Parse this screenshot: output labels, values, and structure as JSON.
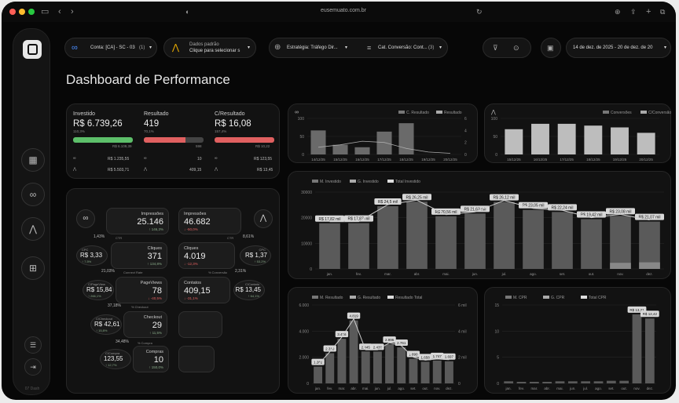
{
  "browser": {
    "url": "eusemuato.com.br"
  },
  "sidebar": {
    "version": "07 Dash"
  },
  "filters": {
    "account": {
      "label": "Conta: [CA] - SC - 03",
      "count": "(1)"
    },
    "ads": {
      "line1": "Dados padrão",
      "line2": "Clique para selecionar s"
    },
    "strategy": {
      "label": "Estratégia: Tráfego Dir...",
      "count": ""
    },
    "conversion": {
      "label": "Cat. Conversão: Cont...",
      "count": "(3)"
    },
    "date": "14 de dez. de 2025 - 20 de dez. de 20"
  },
  "page_title": "Dashboard de Performance",
  "kpi": {
    "investido": {
      "label": "Investido",
      "value": "R$ 6.739,26",
      "pct": "110,3%",
      "meta": "R$ 6.109,39",
      "meta_val": "R$ 1.235,55",
      "google_val": "R$ 5.503,71"
    },
    "resultado": {
      "label": "Resultado",
      "value": "419",
      "pct": "70,1%",
      "meta": "598",
      "meta_val": "10",
      "google_val": "409,15"
    },
    "cresultado": {
      "label": "C/Resultado",
      "value": "R$ 16,08",
      "pct": "157,4%",
      "meta": "R$ 10,22",
      "meta_val": "R$ 123,55",
      "google_val": "R$ 13,45"
    }
  },
  "funnel": {
    "left": [
      {
        "label": "Impressões",
        "value": "25.146",
        "delta": "↑ 146,3%"
      },
      {
        "label": "Cliques",
        "value": "371",
        "delta": "↑ 134,8%"
      },
      {
        "label": "PageViews",
        "value": "78",
        "delta": "↓ -40,5%"
      },
      {
        "label": "Checkout",
        "value": "29",
        "delta": "↑ 11,5%"
      },
      {
        "label": "Compras",
        "value": "10",
        "delta": "↑ 150,0%"
      }
    ],
    "right": [
      {
        "label": "Impressões",
        "value": "46.682",
        "delta": "↓ -50,0%"
      },
      {
        "label": "Cliques",
        "value": "4.019",
        "delta": "↓ -12,3%"
      },
      {
        "label": "Contatos",
        "value": "409,15",
        "delta": "↓ -31,1%"
      }
    ],
    "rates_left": [
      {
        "label": "CTR",
        "value": "1,43%"
      },
      {
        "label": "Connect Rate",
        "value": "21,03%"
      },
      {
        "label": "% Checkout",
        "value": "37,18%"
      },
      {
        "label": "% Compra",
        "value": "34,48%"
      }
    ],
    "rates_right": [
      {
        "label": "CTR",
        "value": "8,61%"
      },
      {
        "label": "% Conversão",
        "value": "2,31%"
      }
    ],
    "costs_left": [
      {
        "label": "CPC",
        "value": "R$ 3,33",
        "delta": "↑ 7,5%"
      },
      {
        "label": "C/PageView",
        "value": "R$ 15,84",
        "delta": "↑ 266,1%"
      },
      {
        "label": "C/Checkout",
        "value": "R$ 42,61",
        "delta": "↑ 15,8%"
      },
      {
        "label": "C/Compra",
        "value": "123,55",
        "delta": "↑ 12,7%"
      }
    ],
    "costs_right": [
      {
        "label": "CPC",
        "value": "R$ 1,37",
        "delta": "↑ 53,2%"
      },
      {
        "label": "C/Contato",
        "value": "R$ 13,45",
        "delta": "↑ 64,1%"
      }
    ]
  },
  "chart_data": [
    {
      "type": "bar",
      "id": "daily-results",
      "legend": [
        "C. Resultado",
        "Resultado"
      ],
      "categories": [
        "14/12/25",
        "15/12/25",
        "16/12/25",
        "17/12/25",
        "18/12/25",
        "19/12/25",
        "20/12/25"
      ],
      "series": [
        {
          "name": "C. Resultado",
          "values": [
            100,
            40,
            30,
            95,
            130,
            0,
            0
          ]
        },
        {
          "name": "Resultado",
          "values": [
            1.2,
            1.6,
            2.2,
            2.0,
            1.0,
            0.4,
            0.2
          ]
        }
      ],
      "yticks_left": [
        "0",
        "50",
        "100"
      ],
      "yticks_right": [
        "0",
        "2",
        "4",
        "6"
      ]
    },
    {
      "type": "bar",
      "id": "daily-conversions",
      "legend": [
        "Conversões",
        "C/Conversão"
      ],
      "categories": [
        "15/12/25",
        "16/12/25",
        "17/12/25",
        "18/12/25",
        "19/12/25",
        "20/12/25"
      ],
      "series": [
        {
          "name": "Conversões",
          "values": [
            70,
            85,
            85,
            80,
            75,
            60
          ]
        }
      ],
      "yticks": [
        "0",
        "50",
        "100"
      ]
    },
    {
      "type": "bar",
      "id": "monthly-investment",
      "legend": [
        "M. Investido",
        "G. Investido",
        "Total Investido"
      ],
      "categories": [
        "jan.",
        "fev.",
        "mar.",
        "abr.",
        "mai.",
        "jun.",
        "jul.",
        "ago.",
        "set.",
        "out.",
        "nov.",
        "dez."
      ],
      "series": [
        {
          "name": "G. Investido",
          "values": [
            17820,
            17870,
            24500,
            26250,
            20560,
            21630,
            26120,
            23050,
            22240,
            19420,
            20700,
            18500
          ]
        },
        {
          "name": "M. Investido",
          "values": [
            0,
            0,
            0,
            0,
            0,
            0,
            0,
            0,
            0,
            0,
            2380,
            2570
          ]
        }
      ],
      "data_labels": [
        "R$ 17,82 mil",
        "R$ 17,87 mil",
        "R$ 24,5 mil",
        "R$ 26,25 mil",
        "R$ 20,56 mil",
        "R$ 21,63 mil",
        "R$ 26,12 mil",
        "R$ 23,05 mil",
        "R$ 22,24 mil",
        "R$ 19,42 mil",
        "R$ 23,08 mil",
        "R$ 21,07 mil"
      ],
      "yticks": [
        "0",
        "10000",
        "20000",
        "30000"
      ],
      "ylim": [
        0,
        30000
      ]
    },
    {
      "type": "bar",
      "id": "monthly-results",
      "legend": [
        "M. Resultado",
        "G. Resultado",
        "Resultado Total"
      ],
      "categories": [
        "jan.",
        "fev.",
        "mar.",
        "abr.",
        "mai.",
        "jun.",
        "jul.",
        "ago.",
        "set.",
        "out.",
        "nov.",
        "dez."
      ],
      "series": [
        {
          "name": "G. Resultado",
          "values": [
            1282,
            2310,
            3416,
            4819,
            2445,
            2439,
            2996,
            2761,
            1890,
            1658,
            1747,
            1697
          ]
        }
      ],
      "data_labels": [
        "1.282",
        "2.310",
        "3.416",
        "4.819",
        "2.445",
        "2.439",
        "2.996",
        "2.761",
        "1.890",
        "1.658",
        "1.747",
        "1.697"
      ],
      "yticks_left": [
        "0",
        "2.000",
        "4.000",
        "6.000"
      ],
      "yticks_right": [
        "0",
        "2 mil",
        "4 mil",
        "6 mil"
      ],
      "ylim": [
        0,
        6000
      ]
    },
    {
      "type": "bar",
      "id": "monthly-cpr",
      "legend": [
        "M. CPR",
        "G. CPR",
        "Total CPR"
      ],
      "categories": [
        "jan.",
        "fev.",
        "mar.",
        "abr.",
        "mai.",
        "jun.",
        "jul.",
        "ago.",
        "set.",
        "out.",
        "nov.",
        "dez."
      ],
      "series": [
        {
          "name": "G. CPR",
          "values": [
            0.4,
            0.3,
            0.3,
            0.3,
            0.4,
            0.4,
            0.4,
            0.4,
            0.5,
            0.5,
            13.21,
            12.42
          ]
        }
      ],
      "data_labels": [
        "",
        "",
        "",
        "",
        "",
        "",
        "",
        "",
        "",
        "",
        "R$ 13,21",
        "R$ 12,42"
      ],
      "yticks": [
        "0",
        "5",
        "10",
        "15"
      ],
      "ylim": [
        0,
        15
      ]
    }
  ]
}
